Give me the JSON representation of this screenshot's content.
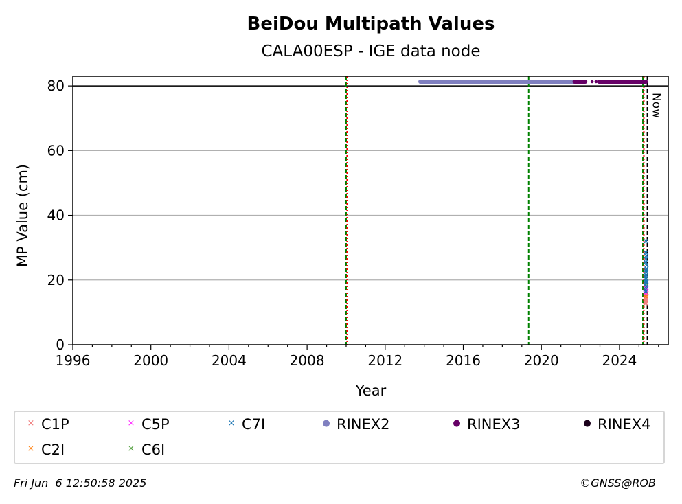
{
  "chart_data": {
    "type": "scatter",
    "title": "BeiDou Multipath Values",
    "subtitle": "CALA00ESP - IGE data node",
    "xlabel": "Year",
    "ylabel": "MP Value (cm)",
    "xlim": [
      1996,
      2026.5
    ],
    "ylim": [
      0,
      83
    ],
    "xticks": [
      1996,
      2000,
      2004,
      2008,
      2012,
      2016,
      2020,
      2024
    ],
    "yticks": [
      0,
      20,
      40,
      60,
      80
    ],
    "grid": "horizontal",
    "reference_line_y": 80,
    "now_label": "Now",
    "now_year": 2025.43,
    "vertical_lines": [
      {
        "x": 2010.0,
        "color": "#008000",
        "style": "dashed"
      },
      {
        "x": 2010.05,
        "color": "#ff0000",
        "style": "dotted"
      },
      {
        "x": 2019.35,
        "color": "#008000",
        "style": "dashed"
      },
      {
        "x": 2025.2,
        "color": "#008000",
        "style": "dashed"
      },
      {
        "x": 2025.25,
        "color": "#ff0000",
        "style": "dotted"
      },
      {
        "x": 2025.43,
        "color": "#000000",
        "style": "dashed"
      }
    ],
    "rinex_y": 81.3,
    "series": [
      {
        "name": "C1P",
        "marker": "x",
        "color": "#f08080",
        "points": [
          [
            2025.32,
            13.0
          ],
          [
            2025.33,
            13.8
          ],
          [
            2025.34,
            14.5
          ],
          [
            2025.35,
            15.2
          ],
          [
            2025.36,
            13.5
          ],
          [
            2025.37,
            14.0
          ],
          [
            2025.38,
            15.5
          ],
          [
            2025.39,
            16.0
          ],
          [
            2025.35,
            12.8
          ],
          [
            2025.37,
            14.8
          ]
        ]
      },
      {
        "name": "C2I",
        "marker": "x",
        "color": "#ff7f0e",
        "points": [
          [
            2025.34,
            15.0
          ],
          [
            2025.36,
            16.2
          ],
          [
            2025.38,
            15.6
          ]
        ]
      },
      {
        "name": "C5P",
        "marker": "x",
        "color": "#ff33ff",
        "points": [
          [
            2025.33,
            16.0
          ],
          [
            2025.35,
            17.0
          ],
          [
            2025.37,
            16.5
          ],
          [
            2025.39,
            17.5
          ],
          [
            2025.36,
            18.0
          ],
          [
            2025.34,
            17.8
          ]
        ]
      },
      {
        "name": "C6I",
        "marker": "x",
        "color": "#55a040",
        "points": [
          [
            2025.35,
            19.0
          ],
          [
            2025.37,
            20.5
          ]
        ]
      },
      {
        "name": "C7I",
        "marker": "x",
        "color": "#1f77b4",
        "points": [
          [
            2025.32,
            17.0
          ],
          [
            2025.33,
            18.5
          ],
          [
            2025.34,
            19.5
          ],
          [
            2025.35,
            20.5
          ],
          [
            2025.36,
            21.5
          ],
          [
            2025.37,
            22.5
          ],
          [
            2025.38,
            23.5
          ],
          [
            2025.39,
            24.5
          ],
          [
            2025.34,
            25.5
          ],
          [
            2025.36,
            26.5
          ],
          [
            2025.38,
            27.5
          ],
          [
            2025.35,
            28.5
          ],
          [
            2025.37,
            23.0
          ],
          [
            2025.33,
            21.0
          ],
          [
            2025.39,
            19.5
          ],
          [
            2025.36,
            32.0
          ],
          [
            2025.38,
            18.0
          ],
          [
            2025.35,
            16.5
          ]
        ]
      },
      {
        "name": "RINEX2",
        "marker": "o",
        "color": "#8080c0",
        "ranges": [
          [
            2013.8,
            2022.1
          ]
        ]
      },
      {
        "name": "RINEX3",
        "marker": "o",
        "color": "#660066",
        "ranges": [
          [
            2021.7,
            2022.25
          ],
          [
            2022.95,
            2025.35
          ]
        ],
        "points": [
          [
            2022.6,
            81.3
          ],
          [
            2022.8,
            81.3
          ]
        ]
      },
      {
        "name": "RINEX4",
        "marker": "o",
        "color": "#1a001a",
        "points": []
      }
    ]
  },
  "legend": {
    "items": [
      {
        "label": "C1P",
        "marker": "×",
        "color": "#f08080"
      },
      {
        "label": "C5P",
        "marker": "×",
        "color": "#ff33ff"
      },
      {
        "label": "C7I",
        "marker": "×",
        "color": "#1f77b4"
      },
      {
        "label": "RINEX2",
        "marker": "●",
        "color": "#8080c0"
      },
      {
        "label": "RINEX3",
        "marker": "●",
        "color": "#660066"
      },
      {
        "label": "RINEX4",
        "marker": "●",
        "color": "#1a001a"
      },
      {
        "label": "C2I",
        "marker": "×",
        "color": "#ff7f0e"
      },
      {
        "label": "C6I",
        "marker": "×",
        "color": "#55a040"
      }
    ]
  },
  "footer": {
    "timestamp": "Fri Jun  6 12:50:58 2025",
    "credit": "©GNSS@ROB"
  }
}
